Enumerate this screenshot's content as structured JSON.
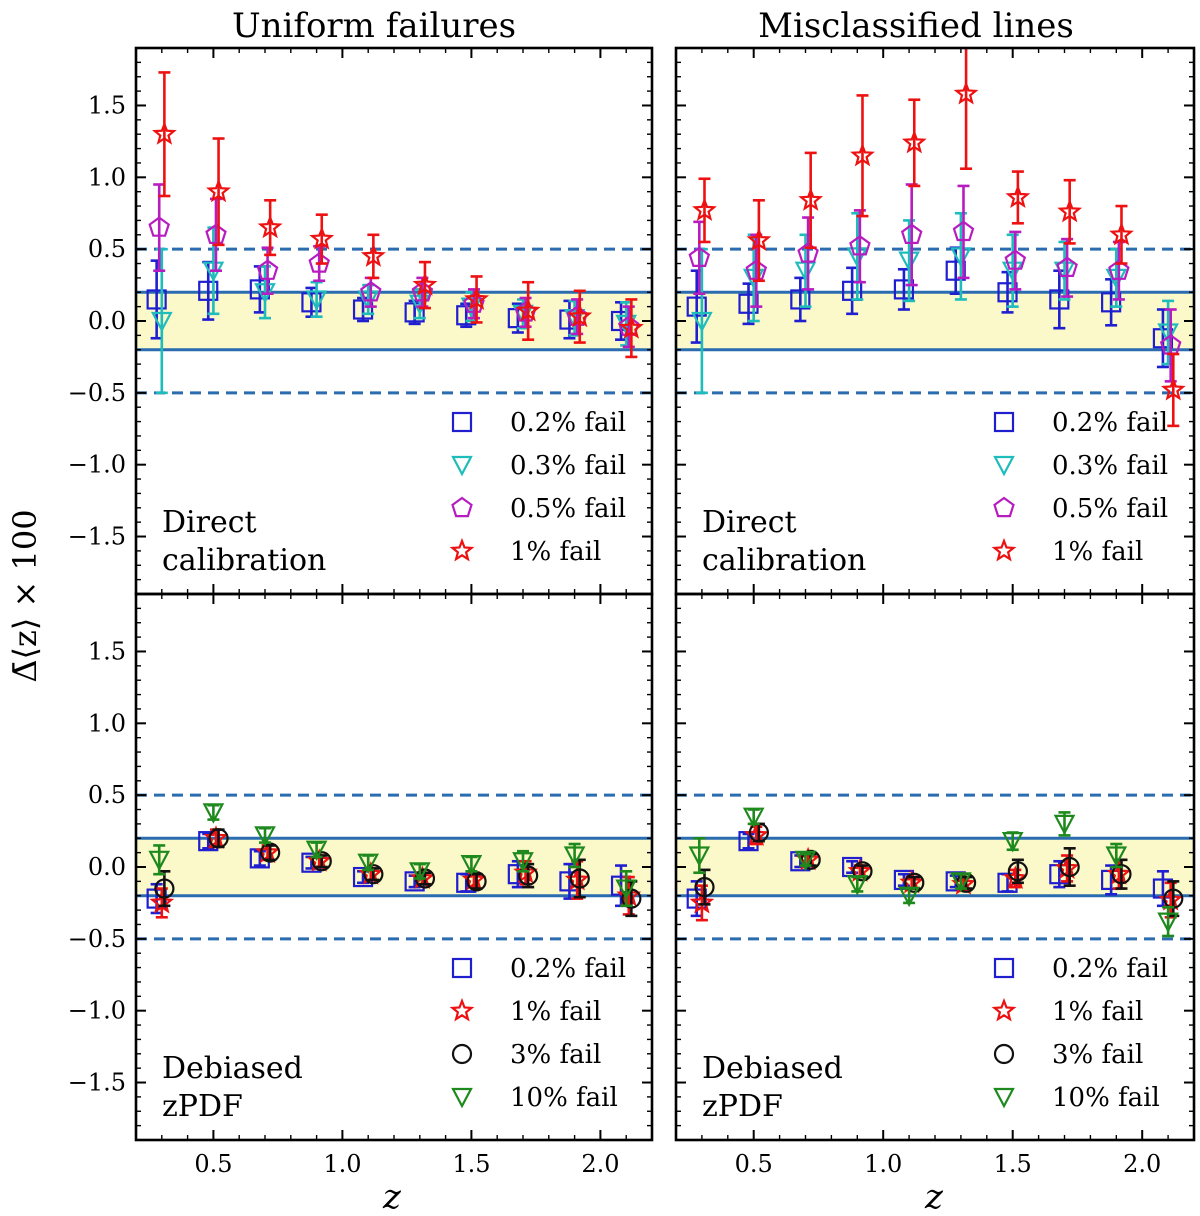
{
  "figure": {
    "ylabel": "Δ̄⟨z⟩ × 100",
    "xlabel": "z"
  },
  "colors": {
    "band": "#fbf8c9",
    "ref_line": "#2b6cb0",
    "series": {
      "0.2% fail": "#1f1fd0",
      "0.3% fail": "#1fbcbc",
      "0.5% fail": "#b71cc0",
      "1% fail": "#ee1111",
      "3% fail": "#111111",
      "10% fail": "#1e8a1e"
    }
  },
  "chart_data": [
    {
      "id": "top-left",
      "type": "scatter",
      "title": "Uniform failures",
      "annotation": [
        "Direct",
        "calibration"
      ],
      "xlim": [
        0.2,
        2.2
      ],
      "ylim": [
        -1.9,
        1.9
      ],
      "xticks": [
        0.5,
        1.0,
        1.5,
        2.0
      ],
      "yticks": [
        -1.5,
        -1.0,
        -0.5,
        0.0,
        0.5,
        1.0,
        1.5
      ],
      "band": [
        -0.2,
        0.2
      ],
      "dashed_lines": [
        -0.5,
        0.5
      ],
      "series": [
        {
          "name": "0.2% fail",
          "marker": "square",
          "x": [
            0.28,
            0.48,
            0.68,
            0.88,
            1.08,
            1.28,
            1.48,
            1.68,
            1.88,
            2.08
          ],
          "y": [
            0.15,
            0.21,
            0.22,
            0.13,
            0.08,
            0.06,
            0.04,
            0.02,
            0.01,
            0.0
          ],
          "err": [
            0.27,
            0.2,
            0.16,
            0.1,
            0.08,
            0.08,
            0.08,
            0.1,
            0.13,
            0.13
          ]
        },
        {
          "name": "0.3% fail",
          "marker": "triangle-down",
          "x": [
            0.3,
            0.5,
            0.7,
            0.9,
            1.1,
            1.3,
            1.5,
            1.7,
            1.9,
            2.1
          ],
          "y": [
            0.0,
            0.35,
            0.2,
            0.15,
            0.15,
            0.12,
            0.1,
            0.05,
            0.02,
            -0.02
          ],
          "err": [
            0.5,
            0.3,
            0.18,
            0.12,
            0.1,
            0.1,
            0.1,
            0.1,
            0.12,
            0.15
          ]
        },
        {
          "name": "0.5% fail",
          "marker": "pentagon",
          "x": [
            0.29,
            0.51,
            0.71,
            0.91,
            1.11,
            1.31,
            1.51,
            1.71,
            1.91,
            2.11
          ],
          "y": [
            0.65,
            0.6,
            0.35,
            0.4,
            0.2,
            0.2,
            0.12,
            0.06,
            0.03,
            -0.04
          ],
          "err": [
            0.3,
            0.25,
            0.16,
            0.12,
            0.1,
            0.1,
            0.1,
            0.1,
            0.12,
            0.14
          ]
        },
        {
          "name": "1% fail",
          "marker": "star",
          "x": [
            0.31,
            0.52,
            0.72,
            0.92,
            1.12,
            1.32,
            1.52,
            1.72,
            1.92,
            2.12
          ],
          "y": [
            1.3,
            0.9,
            0.65,
            0.57,
            0.45,
            0.25,
            0.15,
            0.07,
            0.03,
            -0.05
          ],
          "err": [
            0.43,
            0.37,
            0.19,
            0.17,
            0.15,
            0.16,
            0.16,
            0.2,
            0.18,
            0.2
          ]
        }
      ]
    },
    {
      "id": "top-right",
      "type": "scatter",
      "title": "Misclassified lines",
      "annotation": [
        "Direct",
        "calibration"
      ],
      "xlim": [
        0.2,
        2.2
      ],
      "ylim": [
        -1.9,
        1.9
      ],
      "xticks": [
        0.5,
        1.0,
        1.5,
        2.0
      ],
      "yticks": [
        -1.5,
        -1.0,
        -0.5,
        0.0,
        0.5,
        1.0,
        1.5
      ],
      "band": [
        -0.2,
        0.2
      ],
      "dashed_lines": [
        -0.5,
        0.5
      ],
      "series": [
        {
          "name": "0.2% fail",
          "marker": "square",
          "x": [
            0.28,
            0.48,
            0.68,
            0.88,
            1.08,
            1.28,
            1.48,
            1.68,
            1.88,
            2.08
          ],
          "y": [
            0.1,
            0.12,
            0.15,
            0.21,
            0.22,
            0.35,
            0.2,
            0.15,
            0.13,
            -0.12
          ],
          "err": [
            0.25,
            0.14,
            0.15,
            0.16,
            0.14,
            0.16,
            0.14,
            0.2,
            0.16,
            0.2
          ]
        },
        {
          "name": "0.3% fail",
          "marker": "triangle-down",
          "x": [
            0.3,
            0.5,
            0.7,
            0.9,
            1.1,
            1.3,
            1.5,
            1.7,
            1.9,
            2.1
          ],
          "y": [
            0.0,
            0.3,
            0.35,
            0.45,
            0.42,
            0.45,
            0.35,
            0.35,
            0.3,
            -0.08
          ],
          "err": [
            0.5,
            0.3,
            0.25,
            0.3,
            0.28,
            0.3,
            0.25,
            0.2,
            0.2,
            0.22
          ]
        },
        {
          "name": "0.5% fail",
          "marker": "pentagon",
          "x": [
            0.29,
            0.51,
            0.71,
            0.91,
            1.11,
            1.31,
            1.51,
            1.71,
            1.91,
            2.11
          ],
          "y": [
            0.44,
            0.35,
            0.47,
            0.52,
            0.6,
            0.62,
            0.42,
            0.37,
            0.35,
            -0.17
          ],
          "err": [
            0.25,
            0.25,
            0.25,
            0.25,
            0.35,
            0.32,
            0.2,
            0.2,
            0.2,
            0.25
          ]
        },
        {
          "name": "1% fail",
          "marker": "star",
          "x": [
            0.31,
            0.52,
            0.72,
            0.92,
            1.12,
            1.32,
            1.52,
            1.72,
            1.92,
            2.12
          ],
          "y": [
            0.77,
            0.56,
            0.84,
            1.15,
            1.24,
            1.58,
            0.86,
            0.76,
            0.6,
            -0.48
          ],
          "err": [
            0.22,
            0.28,
            0.33,
            0.42,
            0.3,
            0.52,
            0.18,
            0.22,
            0.2,
            0.25
          ]
        }
      ]
    },
    {
      "id": "bottom-left",
      "type": "scatter",
      "title": "",
      "annotation": [
        "Debiased",
        "zPDF"
      ],
      "xlim": [
        0.2,
        2.2
      ],
      "ylim": [
        -1.9,
        1.9
      ],
      "xticks": [
        0.5,
        1.0,
        1.5,
        2.0
      ],
      "yticks": [
        -1.5,
        -1.0,
        -0.5,
        0.0,
        0.5,
        1.0,
        1.5
      ],
      "band": [
        -0.2,
        0.2
      ],
      "dashed_lines": [
        -0.5,
        0.5
      ],
      "series": [
        {
          "name": "0.2% fail",
          "marker": "square",
          "x": [
            0.28,
            0.48,
            0.68,
            0.88,
            1.08,
            1.28,
            1.48,
            1.68,
            1.88,
            2.08
          ],
          "y": [
            -0.22,
            0.18,
            0.06,
            0.03,
            -0.07,
            -0.1,
            -0.11,
            -0.05,
            -0.1,
            -0.13
          ],
          "err": [
            0.1,
            0.05,
            0.05,
            0.04,
            0.04,
            0.04,
            0.06,
            0.09,
            0.12,
            0.14
          ]
        },
        {
          "name": "1% fail",
          "marker": "star",
          "x": [
            0.3,
            0.51,
            0.71,
            0.91,
            1.11,
            1.31,
            1.51,
            1.71,
            1.91,
            2.11
          ],
          "y": [
            -0.25,
            0.2,
            0.1,
            0.04,
            -0.05,
            -0.08,
            -0.09,
            -0.04,
            -0.09,
            -0.2
          ],
          "err": [
            0.1,
            0.06,
            0.05,
            0.04,
            0.04,
            0.04,
            0.05,
            0.08,
            0.13,
            0.13
          ]
        },
        {
          "name": "3% fail",
          "marker": "circle",
          "x": [
            0.31,
            0.52,
            0.72,
            0.92,
            1.12,
            1.32,
            1.52,
            1.72,
            1.92,
            2.12
          ],
          "y": [
            -0.15,
            0.2,
            0.1,
            0.04,
            -0.05,
            -0.08,
            -0.1,
            -0.06,
            -0.08,
            -0.22
          ],
          "err": [
            0.12,
            0.06,
            0.05,
            0.04,
            0.04,
            0.04,
            0.05,
            0.08,
            0.13,
            0.12
          ]
        },
        {
          "name": "10% fail",
          "marker": "triangle-down",
          "x": [
            0.29,
            0.5,
            0.7,
            0.9,
            1.1,
            1.3,
            1.5,
            1.7,
            1.9,
            2.1
          ],
          "y": [
            0.05,
            0.38,
            0.22,
            0.12,
            0.03,
            -0.03,
            0.02,
            0.04,
            0.08,
            -0.15
          ],
          "err": [
            0.1,
            0.05,
            0.05,
            0.05,
            0.05,
            0.05,
            0.05,
            0.07,
            0.08,
            0.12
          ]
        }
      ]
    },
    {
      "id": "bottom-right",
      "type": "scatter",
      "title": "",
      "annotation": [
        "Debiased",
        "zPDF"
      ],
      "xlim": [
        0.2,
        2.2
      ],
      "ylim": [
        -1.9,
        1.9
      ],
      "xticks": [
        0.5,
        1.0,
        1.5,
        2.0
      ],
      "yticks": [
        -1.5,
        -1.0,
        -0.5,
        0.0,
        0.5,
        1.0,
        1.5
      ],
      "band": [
        -0.2,
        0.2
      ],
      "dashed_lines": [
        -0.5,
        0.5
      ],
      "series": [
        {
          "name": "0.2% fail",
          "marker": "square",
          "x": [
            0.28,
            0.48,
            0.68,
            0.88,
            1.08,
            1.28,
            1.48,
            1.68,
            1.88,
            2.08
          ],
          "y": [
            -0.22,
            0.18,
            0.04,
            0.0,
            -0.09,
            -0.1,
            -0.11,
            -0.05,
            -0.09,
            -0.15
          ],
          "err": [
            0.12,
            0.05,
            0.04,
            0.04,
            0.04,
            0.04,
            0.06,
            0.09,
            0.1,
            0.12
          ]
        },
        {
          "name": "1% fail",
          "marker": "star",
          "x": [
            0.3,
            0.51,
            0.71,
            0.91,
            1.11,
            1.31,
            1.51,
            1.71,
            1.91,
            2.11
          ],
          "y": [
            -0.25,
            0.22,
            0.05,
            -0.03,
            -0.11,
            -0.12,
            -0.08,
            -0.01,
            -0.05,
            -0.23
          ],
          "err": [
            0.12,
            0.06,
            0.04,
            0.04,
            0.04,
            0.04,
            0.06,
            0.09,
            0.1,
            0.12
          ]
        },
        {
          "name": "3% fail",
          "marker": "circle",
          "x": [
            0.31,
            0.52,
            0.72,
            0.92,
            1.12,
            1.32,
            1.52,
            1.72,
            1.92,
            2.12
          ],
          "y": [
            -0.14,
            0.24,
            0.05,
            -0.03,
            -0.11,
            -0.11,
            -0.03,
            0.0,
            -0.05,
            -0.22
          ],
          "err": [
            0.12,
            0.06,
            0.04,
            0.04,
            0.04,
            0.04,
            0.08,
            0.13,
            0.1,
            0.12
          ]
        },
        {
          "name": "10% fail",
          "marker": "triangle-down",
          "x": [
            0.29,
            0.5,
            0.7,
            0.9,
            1.1,
            1.3,
            1.5,
            1.7,
            1.9,
            2.1
          ],
          "y": [
            0.08,
            0.35,
            0.05,
            -0.12,
            -0.2,
            -0.1,
            0.18,
            0.3,
            0.08,
            -0.38
          ],
          "err": [
            0.12,
            0.05,
            0.04,
            0.05,
            0.05,
            0.05,
            0.06,
            0.08,
            0.08,
            0.1
          ]
        }
      ]
    }
  ]
}
